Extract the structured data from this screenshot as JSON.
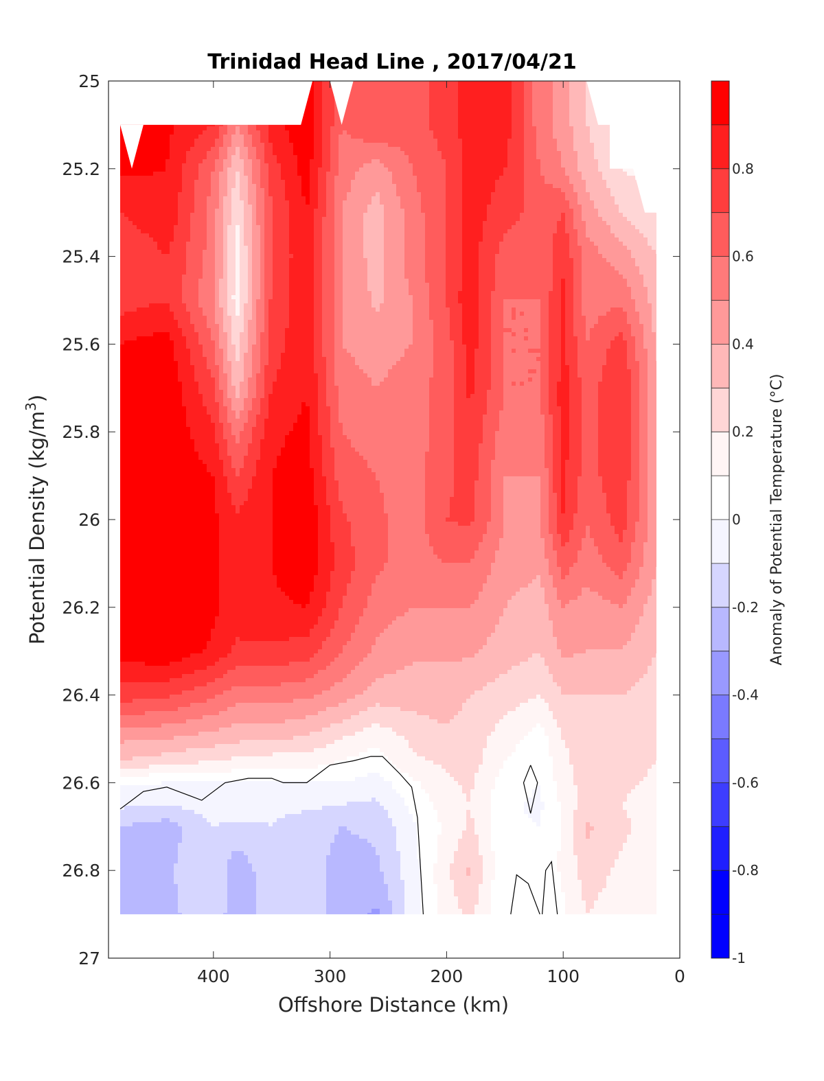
{
  "chart_data": {
    "type": "heatmap",
    "subtype": "filled-contour",
    "title": "Trinidad Head Line , 2017/04/21",
    "xlabel": "Offshore Distance (km)",
    "ylabel": "Potential Density (kg/m",
    "ylabel_sup": "3",
    "ylabel_end": ")",
    "colorbar_label": "Anomaly of Potential Temperature (°C)",
    "x_reversed": true,
    "y_reversed": true,
    "xlim": [
      0,
      490
    ],
    "ylim": [
      25,
      27
    ],
    "x_ticks": [
      "400",
      "300",
      "200",
      "100",
      "0"
    ],
    "y_ticks": [
      "25",
      "25.2",
      "25.4",
      "25.6",
      "25.8",
      "26",
      "26.2",
      "26.4",
      "26.6",
      "26.8",
      "27"
    ],
    "x_tick_values": [
      400,
      300,
      200,
      100,
      0
    ],
    "y_tick_values": [
      25,
      25.2,
      25.4,
      25.6,
      25.8,
      26,
      26.2,
      26.4,
      26.6,
      26.8,
      27
    ],
    "colorbar": {
      "range": [
        -1,
        1
      ],
      "step": 0.1,
      "tick_labels": [
        "0.8",
        "0.6",
        "0.4",
        "0.2",
        "0",
        "-0.2",
        "-0.4",
        "-0.6",
        "-0.8",
        "-1"
      ],
      "tick_values": [
        0.8,
        0.6,
        0.4,
        0.2,
        0,
        -0.2,
        -0.4,
        -0.6,
        -0.8,
        -1
      ],
      "colors_top_to_bottom": [
        "#ff0000",
        "#ff1f1f",
        "#ff3d3d",
        "#ff5c5c",
        "#ff7a7a",
        "#ff9999",
        "#ffb8b8",
        "#ffd6d6",
        "#fff5f5",
        "#ffffff",
        "#f5f5ff",
        "#d6d6ff",
        "#b8b8ff",
        "#9999ff",
        "#7a7aff",
        "#5c5cff",
        "#3d3dff",
        "#1f1fff",
        "#0000ff",
        "#0000ff"
      ]
    },
    "anomaly_grid": {
      "x_km": [
        480,
        440,
        400,
        380,
        350,
        320,
        290,
        260,
        230,
        200,
        180,
        150,
        120,
        100,
        80,
        50,
        20
      ],
      "sigma": [
        25.1,
        25.2,
        25.3,
        25.4,
        25.5,
        25.6,
        25.7,
        25.8,
        25.9,
        26.0,
        26.1,
        26.2,
        26.3,
        26.4,
        26.5,
        26.55,
        26.6,
        26.65,
        26.7,
        26.8,
        26.9
      ],
      "values": [
        [
          0.95,
          0.92,
          0.8,
          0.5,
          0.85,
          0.98,
          0.6,
          0.7,
          0.65,
          0.75,
          0.85,
          0.85,
          0.55,
          0.45,
          0.3,
          0.2,
          0.15
        ],
        [
          0.92,
          0.9,
          0.6,
          0.3,
          0.75,
          0.95,
          0.55,
          0.45,
          0.6,
          0.7,
          0.85,
          0.8,
          0.6,
          0.5,
          0.35,
          0.2,
          0.15
        ],
        [
          0.8,
          0.88,
          0.55,
          0.2,
          0.7,
          0.9,
          0.5,
          0.35,
          0.55,
          0.7,
          0.85,
          0.75,
          0.65,
          0.7,
          0.45,
          0.3,
          0.2
        ],
        [
          0.7,
          0.8,
          0.55,
          0.15,
          0.7,
          0.88,
          0.5,
          0.35,
          0.55,
          0.7,
          0.85,
          0.65,
          0.62,
          0.78,
          0.55,
          0.45,
          0.3
        ],
        [
          0.75,
          0.8,
          0.5,
          0.15,
          0.72,
          0.88,
          0.5,
          0.38,
          0.5,
          0.7,
          0.88,
          0.6,
          0.6,
          0.82,
          0.55,
          0.58,
          0.35
        ],
        [
          0.9,
          0.95,
          0.6,
          0.25,
          0.75,
          0.88,
          0.5,
          0.45,
          0.5,
          0.65,
          0.85,
          0.6,
          0.6,
          0.82,
          0.6,
          0.75,
          0.38
        ],
        [
          0.98,
          0.98,
          0.72,
          0.35,
          0.8,
          0.9,
          0.55,
          0.5,
          0.55,
          0.65,
          0.82,
          0.6,
          0.6,
          0.85,
          0.65,
          0.8,
          0.42
        ],
        [
          0.98,
          0.98,
          0.82,
          0.55,
          0.88,
          0.92,
          0.6,
          0.55,
          0.55,
          0.65,
          0.78,
          0.55,
          0.55,
          0.85,
          0.65,
          0.78,
          0.42
        ],
        [
          0.98,
          0.98,
          0.9,
          0.7,
          0.9,
          0.95,
          0.65,
          0.6,
          0.55,
          0.68,
          0.75,
          0.5,
          0.5,
          0.82,
          0.65,
          0.78,
          0.42
        ],
        [
          0.98,
          0.98,
          0.92,
          0.82,
          0.9,
          0.98,
          0.72,
          0.62,
          0.55,
          0.7,
          0.72,
          0.5,
          0.5,
          0.8,
          0.6,
          0.75,
          0.42
        ],
        [
          0.98,
          0.98,
          0.92,
          0.85,
          0.9,
          0.98,
          0.75,
          0.62,
          0.55,
          0.6,
          0.6,
          0.45,
          0.42,
          0.65,
          0.55,
          0.65,
          0.4
        ],
        [
          0.98,
          0.98,
          0.92,
          0.85,
          0.88,
          0.9,
          0.7,
          0.55,
          0.5,
          0.5,
          0.5,
          0.4,
          0.35,
          0.5,
          0.45,
          0.5,
          0.35
        ],
        [
          0.95,
          0.98,
          0.88,
          0.78,
          0.78,
          0.75,
          0.6,
          0.48,
          0.42,
          0.42,
          0.42,
          0.35,
          0.3,
          0.42,
          0.4,
          0.4,
          0.3
        ],
        [
          0.75,
          0.72,
          0.62,
          0.55,
          0.55,
          0.52,
          0.45,
          0.35,
          0.35,
          0.35,
          0.3,
          0.25,
          0.2,
          0.3,
          0.3,
          0.3,
          0.25
        ],
        [
          0.42,
          0.4,
          0.35,
          0.32,
          0.32,
          0.28,
          0.2,
          0.12,
          0.22,
          0.28,
          0.25,
          0.15,
          0.05,
          0.2,
          0.25,
          0.25,
          0.2
        ],
        [
          0.3,
          0.25,
          0.2,
          0.18,
          0.15,
          0.15,
          0.1,
          0.05,
          0.18,
          0.22,
          0.25,
          0.1,
          0.02,
          0.18,
          0.25,
          0.25,
          0.2
        ],
        [
          0.02,
          0.0,
          0.0,
          0.0,
          0.0,
          0.0,
          0.0,
          -0.05,
          0.08,
          0.18,
          0.22,
          0.05,
          0.0,
          0.15,
          0.25,
          0.22,
          0.18
        ],
        [
          -0.08,
          -0.1,
          -0.05,
          -0.05,
          -0.08,
          -0.08,
          -0.1,
          -0.12,
          0.02,
          0.15,
          0.2,
          0.02,
          -0.02,
          0.12,
          0.25,
          0.2,
          0.15
        ],
        [
          -0.2,
          -0.25,
          -0.1,
          -0.12,
          -0.1,
          -0.15,
          -0.2,
          -0.18,
          -0.02,
          0.12,
          0.22,
          0.02,
          0.0,
          0.12,
          0.32,
          0.22,
          0.15
        ],
        [
          -0.25,
          -0.22,
          -0.1,
          -0.28,
          -0.12,
          -0.15,
          -0.25,
          -0.22,
          -0.05,
          0.18,
          0.32,
          0.0,
          0.02,
          0.12,
          0.25,
          0.18,
          0.15
        ],
        [
          -0.25,
          -0.22,
          -0.15,
          -0.25,
          -0.15,
          -0.15,
          -0.25,
          -0.32,
          -0.05,
          0.15,
          0.22,
          0.0,
          0.0,
          0.08,
          0.2,
          0.15,
          0.12
        ]
      ]
    }
  }
}
